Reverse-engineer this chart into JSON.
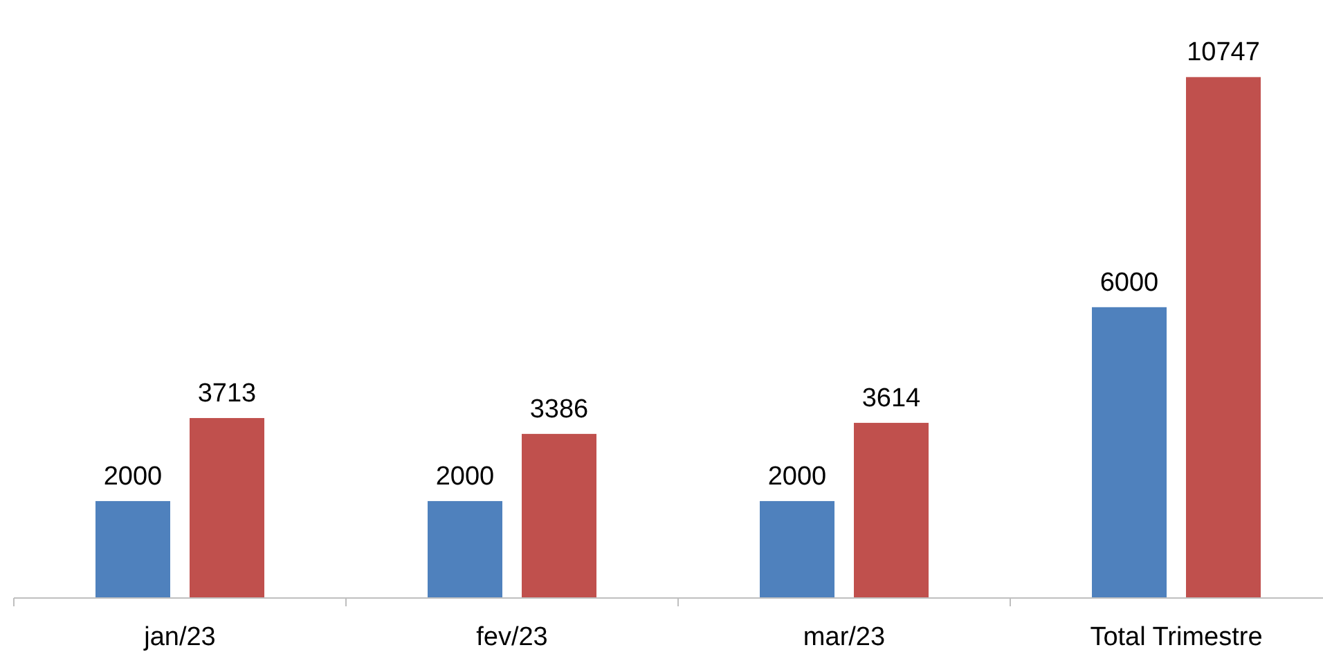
{
  "chart_data": {
    "type": "bar",
    "categories": [
      "jan/23",
      "fev/23",
      "mar/23",
      "Total Trimestre"
    ],
    "series": [
      {
        "color": "#4f81bd",
        "values": [
          2000,
          2000,
          2000,
          6000
        ]
      },
      {
        "color": "#c0504d",
        "values": [
          3713,
          3386,
          3614,
          10747
        ]
      }
    ],
    "data_labels": true
  }
}
